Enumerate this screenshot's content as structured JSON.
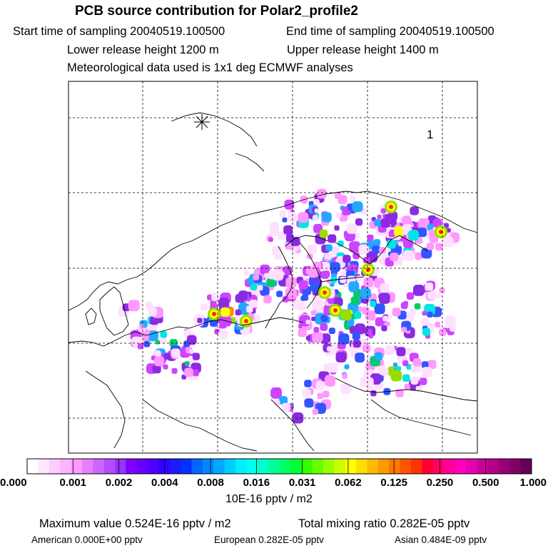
{
  "header": {
    "title": "PCB source contribution for Polar2_profile2",
    "start_time": "Start time of sampling 20040519.100500",
    "end_time": "End time of sampling 20040519.100500",
    "lower_release": "Lower release height 1200 m",
    "upper_release": "Upper release height 1400 m",
    "meteo": "Meteorological data used is 1x1 deg ECMWF analyses"
  },
  "map": {
    "site_label": "1",
    "site_marker": "asterisk-icon",
    "gridline_style": "dashed",
    "field_colors": [
      "#ffe0ff",
      "#ff99ff",
      "#cc44ff",
      "#8a2be2",
      "#3355ff",
      "#22aaff",
      "#00e5e5",
      "#00cc66",
      "#99dd00",
      "#ffff00",
      "#ff8800",
      "#ff2020",
      "#ff1493"
    ]
  },
  "colorbar": {
    "tick_labels": [
      "0.000",
      "0.001",
      "0.002",
      "0.004",
      "0.008",
      "0.016",
      "0.031",
      "0.062",
      "0.125",
      "0.250",
      "0.500",
      "1.000"
    ],
    "units": "10E-16 pptv / m2",
    "colors": [
      "#ffffff",
      "#ffe6ff",
      "#ffccff",
      "#ffb3ff",
      "#ff99ff",
      "#e680ff",
      "#cc66ff",
      "#b34dff",
      "#9933ff",
      "#8000ff",
      "#6600ff",
      "#4d00ff",
      "#3300ff",
      "#1a1aff",
      "#0033ff",
      "#0066ff",
      "#0088ff",
      "#00aaff",
      "#00ccff",
      "#00eeff",
      "#00ffee",
      "#00ffcc",
      "#00ff99",
      "#00ff66",
      "#00ff33",
      "#33ff00",
      "#66ff00",
      "#99ff00",
      "#ccff00",
      "#ffff00",
      "#ffdd00",
      "#ffbb00",
      "#ff9900",
      "#ff7700",
      "#ff5500",
      "#ff3300",
      "#ff0033",
      "#ff0066",
      "#ff0099",
      "#ff00bb",
      "#e600b0",
      "#cc0099",
      "#b30088",
      "#990077",
      "#800066",
      "#660055"
    ]
  },
  "summary": {
    "max_value": "Maximum value  0.524E-16 pptv / m2",
    "total_mixing": "Total mixing ratio  0.282E-05 pptv",
    "american": "American  0.000E+00 pptv",
    "european": "European  0.282E-05 pptv",
    "asian": "Asian  0.484E-09 pptv"
  }
}
